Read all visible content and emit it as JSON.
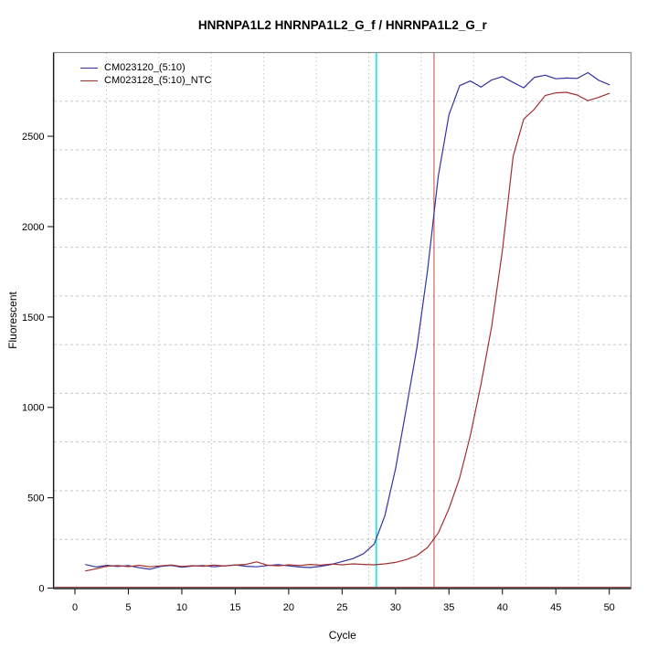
{
  "title": "HNRNPA1L2  HNRNPA1L2_G_f / HNRNPA1L2_G_r",
  "legend": {
    "items": [
      {
        "label": "CM023120_(5:10)"
      },
      {
        "label": "CM023128_(5:10)_NTC"
      }
    ]
  },
  "chart_data": {
    "type": "line",
    "title": "HNRNPA1L2  HNRNPA1L2_G_f / HNRNPA1L2_G_r",
    "xlabel": "Cycle",
    "ylabel": "Fluorescent",
    "x_ticks": [
      0,
      5,
      10,
      15,
      20,
      25,
      30,
      35,
      40,
      45,
      50
    ],
    "y_ticks": [
      0,
      500,
      1000,
      1500,
      2000,
      2500
    ],
    "xlim": [
      -2,
      52
    ],
    "ylim": [
      0,
      2960
    ],
    "grid": {
      "on": true,
      "nx": 11,
      "ny": 11,
      "color": "#C6C6C6"
    },
    "legend_position": "top-left",
    "x": [
      1,
      2,
      3,
      4,
      5,
      6,
      7,
      8,
      9,
      10,
      11,
      12,
      13,
      14,
      15,
      16,
      17,
      18,
      19,
      20,
      21,
      22,
      23,
      24,
      25,
      26,
      27,
      28,
      29,
      30,
      31,
      32,
      33,
      34,
      35,
      36,
      37,
      38,
      39,
      40,
      41,
      42,
      43,
      44,
      45,
      46,
      47,
      48,
      49,
      50
    ],
    "series": [
      {
        "name": "CM023120_(5:10)",
        "color": "#3333A0",
        "values": [
          130,
          117,
          126,
          120,
          125,
          113,
          104,
          120,
          126,
          116,
          122,
          125,
          118,
          123,
          128,
          121,
          118,
          125,
          130,
          123,
          117,
          114,
          121,
          131,
          147,
          163,
          190,
          243,
          400,
          660,
          990,
          1330,
          1760,
          2280,
          2620,
          2780,
          2806,
          2772,
          2812,
          2830,
          2798,
          2768,
          2826,
          2838,
          2818,
          2822,
          2820,
          2852,
          2810,
          2785
        ]
      },
      {
        "name": "CM023128_(5:10)_NTC",
        "color": "#A03030",
        "values": [
          95,
          107,
          121,
          125,
          119,
          126,
          118,
          123,
          128,
          120,
          124,
          121,
          127,
          122,
          128,
          131,
          145,
          127,
          123,
          129,
          125,
          131,
          127,
          133,
          129,
          134,
          131,
          129,
          134,
          142,
          158,
          180,
          225,
          305,
          440,
          610,
          845,
          1130,
          1450,
          1870,
          2390,
          2595,
          2650,
          2725,
          2740,
          2743,
          2728,
          2697,
          2715,
          2737
        ]
      }
    ],
    "markers": {
      "cyan_vline_cycle": 28.2,
      "cyan_vline_color": "#25E8E8",
      "red_vline_cycle": 33.6,
      "red_vline_color": "#CC6666",
      "baseline_value": 0,
      "baseline_color": "#8B2020"
    }
  }
}
